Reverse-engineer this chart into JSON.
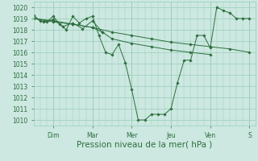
{
  "bg_color": "#cce8e0",
  "grid_color": "#99ccbb",
  "line_color": "#2d6e3e",
  "marker_color": "#2d6e3e",
  "xlabel": "Pression niveau de la mer( hPa )",
  "xlabel_fontsize": 7.5,
  "tick_color": "#2d6e3e",
  "tick_fontsize": 5.5,
  "ylim": [
    1009.5,
    1020.5
  ],
  "yticks": [
    1010,
    1011,
    1012,
    1013,
    1014,
    1015,
    1016,
    1017,
    1018,
    1019,
    1020
  ],
  "day_labels": [
    "Dim",
    "Mar",
    "Mer",
    "Jeu",
    "Ven",
    "S"
  ],
  "day_positions": [
    1.0,
    3.0,
    5.0,
    7.0,
    9.0,
    11.0
  ],
  "series": [
    {
      "x": [
        0.0,
        0.33,
        0.67,
        1.0,
        1.33,
        1.67,
        2.0,
        2.33,
        2.67,
        3.0,
        3.33,
        3.67,
        4.0,
        4.33,
        4.67,
        5.0,
        5.33,
        5.67,
        6.0,
        6.33,
        6.67,
        7.0,
        7.33,
        7.67,
        8.0,
        8.33,
        8.67,
        9.0,
        9.33,
        9.67,
        10.0,
        10.33,
        10.67,
        11.0
      ],
      "y": [
        1019.3,
        1018.8,
        1018.7,
        1019.2,
        1018.5,
        1018.0,
        1019.2,
        1018.6,
        1019.0,
        1019.2,
        1017.5,
        1016.0,
        1015.8,
        1016.7,
        1015.1,
        1012.7,
        1010.0,
        1010.0,
        1010.5,
        1010.5,
        1010.5,
        1011.0,
        1013.3,
        1015.3,
        1015.3,
        1017.5,
        1017.5,
        1016.4,
        1020.0,
        1019.7,
        1019.5,
        1019.0,
        1019.0,
        1019.0
      ]
    },
    {
      "x": [
        0.0,
        1.0,
        2.0,
        3.0,
        4.0,
        5.0,
        6.0,
        7.0,
        8.0,
        9.0,
        10.0,
        11.0
      ],
      "y": [
        1019.0,
        1018.7,
        1018.5,
        1018.2,
        1017.8,
        1017.5,
        1017.2,
        1016.9,
        1016.7,
        1016.5,
        1016.3,
        1016.0
      ]
    },
    {
      "x": [
        0.0,
        1.0,
        2.0,
        3.0,
        3.5,
        4.0,
        5.0,
        6.0,
        7.0,
        8.0,
        9.0
      ],
      "y": [
        1019.0,
        1018.8,
        1018.5,
        1018.2,
        1017.8,
        1017.2,
        1016.8,
        1016.5,
        1016.2,
        1016.0,
        1015.8
      ]
    },
    {
      "x": [
        0.0,
        0.5,
        1.0,
        1.5,
        2.0,
        2.5,
        3.0,
        3.5
      ],
      "y": [
        1019.1,
        1018.7,
        1018.9,
        1018.3,
        1018.6,
        1018.1,
        1018.8,
        1017.8
      ]
    }
  ],
  "xlim": [
    0.0,
    11.3
  ]
}
